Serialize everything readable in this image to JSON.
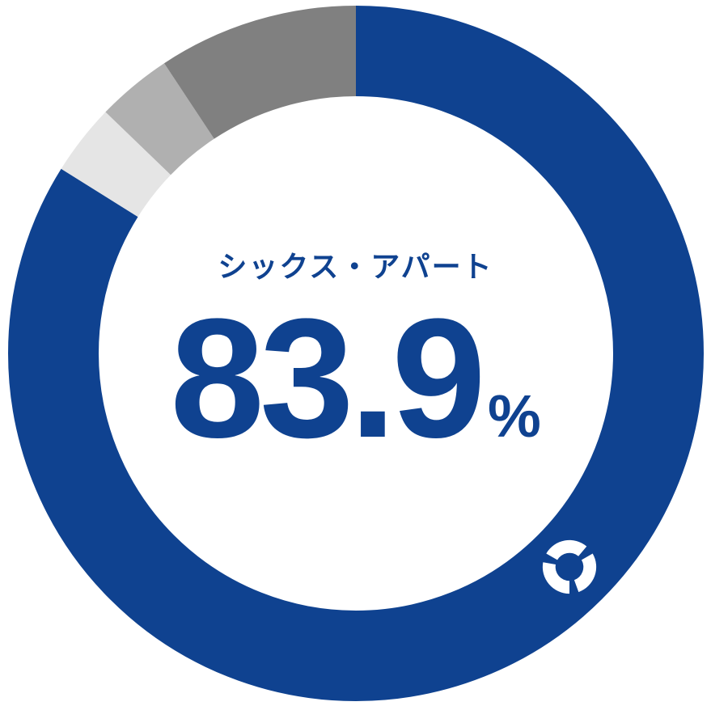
{
  "chart": {
    "type": "donut",
    "subtitle": "シックス・アパート",
    "value": "83.9",
    "unit": "%",
    "text_color": "#0f4290",
    "background_color": "transparent",
    "outer_radius": 430,
    "inner_radius": 318,
    "segments": [
      {
        "name": "primary",
        "percent": 83.9,
        "color": "#0f4290"
      },
      {
        "name": "segment2",
        "percent": 3.3,
        "color": "#e5e5e5"
      },
      {
        "name": "segment3",
        "percent": 3.5,
        "color": "#b0b0b0"
      },
      {
        "name": "segment4",
        "percent": 9.3,
        "color": "#808080"
      }
    ],
    "subtitle_fontsize": 36,
    "value_fontsize": 210,
    "unit_fontsize": 74,
    "logo": {
      "color": "#ffffff",
      "position_angle_deg": 45,
      "radius_from_center": 374,
      "size": 72
    }
  }
}
